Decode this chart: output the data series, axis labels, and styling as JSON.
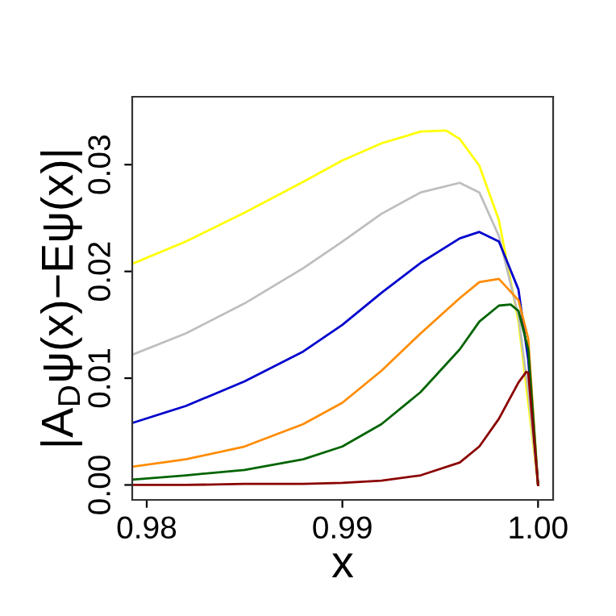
{
  "chart_data": {
    "type": "line",
    "xlabel": "x",
    "ylabel": "|A$_{D}$ψ(x)−Eψ(x)|",
    "xlim": [
      0.97926,
      1.00077
    ],
    "ylim": [
      -0.0014,
      0.03636
    ],
    "xticks": [
      {
        "value": 0.98,
        "label": "0.98"
      },
      {
        "value": 0.99,
        "label": "0.99"
      },
      {
        "value": 1.0,
        "label": "1.00"
      }
    ],
    "yticks": [
      {
        "value": 0.0,
        "label": "0.00"
      },
      {
        "value": 0.01,
        "label": "0.01"
      },
      {
        "value": 0.02,
        "label": "0.02"
      },
      {
        "value": 0.03,
        "label": "0.03"
      }
    ],
    "grid": false,
    "marker": "none",
    "line_style": "solid",
    "series": [
      {
        "color": "#ffff00",
        "x": [
          0.97926,
          0.982,
          0.985,
          0.988,
          0.99,
          0.992,
          0.994,
          0.9953,
          0.996,
          0.997,
          0.998,
          0.999,
          0.9995,
          1.0
        ],
        "values": [
          0.0207,
          0.0228,
          0.0255,
          0.0284,
          0.0304,
          0.032,
          0.0331,
          0.0332,
          0.0324,
          0.0299,
          0.0248,
          0.0153,
          0.0077,
          0.0
        ]
      },
      {
        "color": "#bebebe",
        "x": [
          0.97926,
          0.982,
          0.985,
          0.988,
          0.99,
          0.992,
          0.994,
          0.996,
          0.997,
          0.998,
          0.999,
          0.9995,
          1.0
        ],
        "values": [
          0.0122,
          0.0142,
          0.017,
          0.0203,
          0.0228,
          0.0254,
          0.0274,
          0.0283,
          0.0274,
          0.0233,
          0.0158,
          0.0087,
          0.0
        ]
      },
      {
        "color": "#0000cd",
        "x": [
          0.97926,
          0.982,
          0.985,
          0.988,
          0.99,
          0.992,
          0.994,
          0.996,
          0.997,
          0.998,
          0.999,
          0.9995,
          1.0
        ],
        "values": [
          0.0058,
          0.0074,
          0.0097,
          0.0125,
          0.015,
          0.018,
          0.0208,
          0.0231,
          0.0237,
          0.0228,
          0.0183,
          0.0117,
          0.0
        ]
      },
      {
        "color": "#ff8c00",
        "x": [
          0.97926,
          0.982,
          0.985,
          0.988,
          0.99,
          0.992,
          0.994,
          0.996,
          0.997,
          0.998,
          0.999,
          0.9995,
          1.0
        ],
        "values": [
          0.0017,
          0.0024,
          0.0036,
          0.0057,
          0.0077,
          0.0107,
          0.0142,
          0.0175,
          0.019,
          0.0193,
          0.0173,
          0.0137,
          0.0
        ]
      },
      {
        "color": "#006400",
        "x": [
          0.97926,
          0.982,
          0.985,
          0.988,
          0.99,
          0.992,
          0.994,
          0.996,
          0.997,
          0.998,
          0.9986,
          0.999,
          0.9995,
          1.0
        ],
        "values": [
          0.0005,
          0.0009,
          0.0014,
          0.0024,
          0.0036,
          0.0057,
          0.0087,
          0.0127,
          0.0153,
          0.0168,
          0.0169,
          0.0163,
          0.0127,
          0.0
        ]
      },
      {
        "color": "#8b0000",
        "x": [
          0.97926,
          0.982,
          0.985,
          0.988,
          0.99,
          0.992,
          0.994,
          0.996,
          0.997,
          0.998,
          0.999,
          0.9994,
          0.9995,
          0.99975,
          1.0
        ],
        "values": [
          0.0,
          0.0,
          0.0001,
          0.0001,
          0.0002,
          0.0004,
          0.0009,
          0.0021,
          0.0036,
          0.0062,
          0.0096,
          0.0106,
          0.0105,
          0.0052,
          0.0
        ]
      }
    ]
  }
}
